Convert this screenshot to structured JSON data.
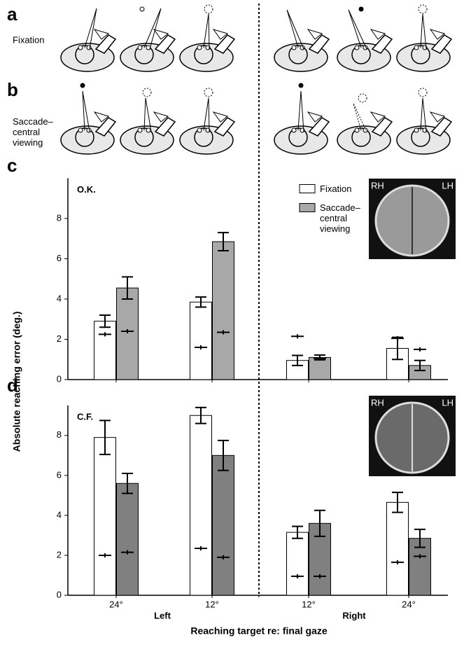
{
  "panel_a": {
    "letter": "a",
    "label": "Fixation"
  },
  "panel_b": {
    "letter": "b",
    "label": "Saccade–central viewing"
  },
  "figure": {
    "ylabel": "Absolute reaching error (deg.)",
    "xlabel": "Reaching target re: final gaze",
    "x_groups": [
      "Left",
      "Right"
    ]
  },
  "chart_data": [
    {
      "type": "bar",
      "panel": "c",
      "title": "O.K.",
      "inset_labels": [
        "RH",
        "LH"
      ],
      "categories": [
        null,
        null,
        null,
        null
      ],
      "ylim": [
        0,
        10
      ],
      "yticks": [
        0,
        2,
        4,
        6,
        8
      ],
      "series": [
        {
          "name": "Fixation",
          "color": "#ffffff",
          "values": [
            2.9,
            3.85,
            0.95,
            1.55
          ],
          "errors": [
            0.3,
            0.25,
            0.25,
            0.55
          ],
          "control": [
            2.25,
            1.6,
            2.15,
            2.05
          ]
        },
        {
          "name": "Saccade–central viewing",
          "color": "#a8a8a8",
          "values": [
            4.55,
            6.85,
            1.1,
            0.7
          ],
          "errors": [
            0.55,
            0.45,
            0.12,
            0.25
          ],
          "control": [
            2.4,
            2.35,
            1.05,
            1.5
          ]
        }
      ]
    },
    {
      "type": "bar",
      "panel": "d",
      "title": "C.F.",
      "inset_labels": [
        "RH",
        "LH"
      ],
      "categories": [
        "24°",
        "12°",
        "12°",
        "24°"
      ],
      "ylim": [
        0,
        9.5
      ],
      "yticks": [
        0,
        2,
        4,
        6,
        8
      ],
      "series": [
        {
          "color": "#ffffff",
          "values": [
            7.9,
            9.0,
            3.15,
            4.65
          ],
          "errors": [
            0.85,
            0.4,
            0.3,
            0.5
          ],
          "control": [
            2.0,
            2.35,
            0.95,
            1.65
          ]
        },
        {
          "color": "#808080",
          "values": [
            5.6,
            7.0,
            3.6,
            2.85
          ],
          "errors": [
            0.5,
            0.75,
            0.65,
            0.45
          ],
          "control": [
            2.15,
            1.9,
            0.95,
            1.95
          ]
        }
      ]
    }
  ]
}
